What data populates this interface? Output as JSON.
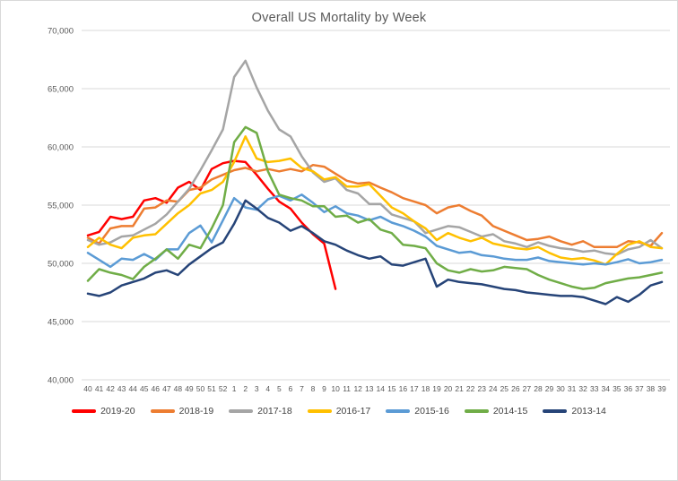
{
  "title": "Overall US Mortality by Week",
  "chart_data": {
    "type": "line",
    "title": "Overall US Mortality by Week",
    "xlabel": "",
    "ylabel": "",
    "ylim": [
      40000,
      70000
    ],
    "y_tick_values": [
      70000,
      65000,
      60000,
      55000,
      50000,
      45000,
      40000
    ],
    "y_tick_labels": [
      "70,000",
      "65,000",
      "60,000",
      "55,000",
      "50,000",
      "45,000",
      "40,000"
    ],
    "grid": "horizontal",
    "legend_position": "bottom",
    "x_labels": [
      "40",
      "41",
      "42",
      "43",
      "44",
      "45",
      "46",
      "47",
      "48",
      "49",
      "50",
      "51",
      "52",
      "1",
      "2",
      "3",
      "4",
      "5",
      "6",
      "7",
      "8",
      "9",
      "10",
      "11",
      "12",
      "13",
      "14",
      "15",
      "16",
      "17",
      "18",
      "19",
      "20",
      "21",
      "22",
      "23",
      "24",
      "25",
      "26",
      "27",
      "28",
      "29",
      "30",
      "31",
      "32",
      "33",
      "34",
      "35",
      "36",
      "37",
      "38",
      "39"
    ],
    "series": [
      {
        "name": "2019-20",
        "color": "#FF0000",
        "values": [
          52400,
          52700,
          54000,
          53800,
          54000,
          55400,
          55600,
          55200,
          56500,
          57000,
          56300,
          58100,
          58600,
          58800,
          58700,
          57600,
          56400,
          55300,
          54700,
          53500,
          52500,
          51700,
          47800,
          null,
          null,
          null,
          null,
          null,
          null,
          null,
          null,
          null,
          null,
          null,
          null,
          null,
          null,
          null,
          null,
          null,
          null,
          null,
          null,
          null,
          null,
          null,
          null,
          null,
          null,
          null,
          null,
          null
        ]
      },
      {
        "name": "2018-19",
        "color": "#ED7D31",
        "values": [
          52200,
          51700,
          53000,
          53200,
          53200,
          54700,
          54800,
          55400,
          55300,
          56300,
          56500,
          57200,
          57600,
          58000,
          58200,
          57900,
          58100,
          57900,
          58100,
          57900,
          58450,
          58300,
          57700,
          57100,
          56850,
          56950,
          56500,
          56100,
          55600,
          55300,
          55000,
          54300,
          54800,
          55000,
          54500,
          54100,
          53200,
          52800,
          52400,
          52000,
          52100,
          52300,
          51900,
          51600,
          51900,
          51400,
          51400,
          51400,
          51900,
          51800,
          51500,
          52600
        ]
      },
      {
        "name": "2017-18",
        "color": "#A5A5A5",
        "values": [
          52000,
          51600,
          51800,
          52300,
          52400,
          52900,
          53400,
          54200,
          55300,
          56400,
          58000,
          59700,
          61500,
          66000,
          67400,
          65100,
          63100,
          61500,
          60900,
          59200,
          57800,
          57000,
          57300,
          56300,
          56000,
          55100,
          55100,
          54200,
          53900,
          53600,
          52600,
          52900,
          53200,
          53100,
          52700,
          52300,
          52500,
          51900,
          51700,
          51400,
          51800,
          51500,
          51300,
          51200,
          51000,
          51100,
          50850,
          50750,
          51200,
          51400,
          52000,
          51300
        ]
      },
      {
        "name": "2016-17",
        "color": "#FFC000",
        "values": [
          51400,
          52200,
          51600,
          51300,
          52200,
          52400,
          52500,
          53400,
          54300,
          55000,
          56000,
          56300,
          57000,
          58700,
          60900,
          59000,
          58700,
          58800,
          59000,
          58200,
          57900,
          57200,
          57400,
          56600,
          56600,
          56800,
          55800,
          54800,
          54300,
          53600,
          53000,
          52000,
          52600,
          52200,
          51900,
          52200,
          51700,
          51500,
          51300,
          51200,
          51400,
          50900,
          50500,
          50350,
          50450,
          50250,
          49900,
          50800,
          51600,
          51900,
          51400,
          51300
        ]
      },
      {
        "name": "2015-16",
        "color": "#5B9BD5",
        "values": [
          50900,
          50300,
          49700,
          50400,
          50300,
          50800,
          50300,
          51200,
          51200,
          52600,
          53250,
          51800,
          53700,
          55600,
          54800,
          54600,
          55500,
          55800,
          55400,
          55900,
          55200,
          54400,
          54900,
          54300,
          54100,
          53700,
          54000,
          53500,
          53200,
          52800,
          52300,
          51500,
          51200,
          50900,
          51000,
          50700,
          50600,
          50400,
          50300,
          50300,
          50500,
          50200,
          50100,
          50000,
          49900,
          50000,
          49900,
          50100,
          50350,
          50000,
          50100,
          50300
        ]
      },
      {
        "name": "2014-15",
        "color": "#70AD47",
        "values": [
          48500,
          49500,
          49200,
          49000,
          48650,
          49700,
          50400,
          51200,
          50400,
          51600,
          51300,
          53000,
          55000,
          60400,
          61700,
          61200,
          57900,
          55900,
          55600,
          55400,
          54900,
          54900,
          54000,
          54100,
          53500,
          53800,
          52900,
          52600,
          51600,
          51500,
          51300,
          50000,
          49400,
          49200,
          49500,
          49300,
          49400,
          49700,
          49600,
          49500,
          49000,
          48600,
          48300,
          48000,
          47800,
          47900,
          48300,
          48500,
          48700,
          48800,
          49000,
          49200
        ]
      },
      {
        "name": "2013-14",
        "color": "#264478",
        "values": [
          47400,
          47200,
          47500,
          48100,
          48400,
          48700,
          49200,
          49400,
          49000,
          49900,
          50600,
          51300,
          51800,
          53400,
          55400,
          54700,
          53900,
          53500,
          52800,
          53200,
          52600,
          51900,
          51600,
          51100,
          50700,
          50400,
          50600,
          49900,
          49800,
          50100,
          50400,
          48000,
          48600,
          48400,
          48300,
          48200,
          48000,
          47800,
          47700,
          47500,
          47400,
          47300,
          47200,
          47200,
          47100,
          46800,
          46500,
          47100,
          46700,
          47300,
          48100,
          48400
        ]
      }
    ]
  },
  "style": {
    "gridline_color": "#d9d9d9",
    "text_color": "#595959",
    "legend_text_color": "#404040",
    "background": "#ffffff"
  }
}
